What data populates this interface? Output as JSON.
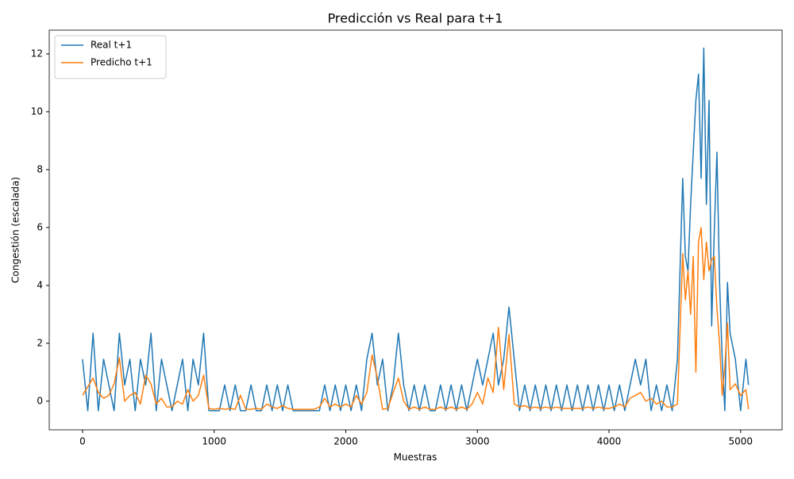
{
  "chart_data": {
    "type": "line",
    "title": "Predicción vs Real para t+1",
    "xlabel": "Muestras",
    "ylabel": "Congestión (escalada)",
    "x": [
      0,
      40,
      80,
      120,
      160,
      200,
      240,
      280,
      320,
      360,
      400,
      440,
      480,
      520,
      560,
      600,
      640,
      680,
      720,
      760,
      800,
      840,
      880,
      920,
      960,
      1000,
      1040,
      1080,
      1120,
      1160,
      1200,
      1240,
      1280,
      1320,
      1360,
      1400,
      1440,
      1480,
      1520,
      1560,
      1600,
      1640,
      1680,
      1720,
      1760,
      1800,
      1840,
      1880,
      1920,
      1960,
      2000,
      2040,
      2080,
      2120,
      2160,
      2200,
      2240,
      2280,
      2320,
      2360,
      2400,
      2440,
      2480,
      2520,
      2560,
      2600,
      2640,
      2680,
      2720,
      2760,
      2800,
      2840,
      2880,
      2920,
      2960,
      3000,
      3040,
      3080,
      3120,
      3160,
      3200,
      3240,
      3280,
      3320,
      3360,
      3400,
      3440,
      3480,
      3520,
      3560,
      3600,
      3640,
      3680,
      3720,
      3760,
      3800,
      3840,
      3880,
      3920,
      3960,
      4000,
      4040,
      4080,
      4120,
      4160,
      4200,
      4240,
      4280,
      4320,
      4360,
      4400,
      4440,
      4480,
      4520,
      4560,
      4580,
      4600,
      4620,
      4640,
      4660,
      4680,
      4700,
      4720,
      4740,
      4760,
      4780,
      4800,
      4820,
      4840,
      4860,
      4880,
      4900,
      4920,
      4960,
      5000,
      5040,
      5060
    ],
    "series": [
      {
        "name": "Real t+1",
        "color": "#1f77b4",
        "values": [
          1.45,
          -0.33,
          2.35,
          -0.33,
          1.45,
          0.56,
          -0.33,
          2.35,
          0.56,
          1.45,
          -0.33,
          1.45,
          0.56,
          2.35,
          -0.33,
          1.45,
          0.56,
          -0.33,
          0.56,
          1.45,
          -0.33,
          1.45,
          0.56,
          2.35,
          -0.33,
          -0.33,
          -0.33,
          0.56,
          -0.33,
          0.56,
          -0.33,
          -0.33,
          0.56,
          -0.33,
          -0.33,
          0.56,
          -0.33,
          0.56,
          -0.33,
          0.56,
          -0.33,
          -0.33,
          -0.33,
          -0.33,
          -0.33,
          -0.33,
          0.56,
          -0.33,
          0.56,
          -0.33,
          0.56,
          -0.33,
          0.56,
          -0.33,
          1.45,
          2.35,
          0.56,
          1.45,
          -0.33,
          0.56,
          2.35,
          0.56,
          -0.33,
          0.56,
          -0.33,
          0.56,
          -0.33,
          -0.33,
          0.56,
          -0.33,
          0.56,
          -0.33,
          0.56,
          -0.33,
          0.56,
          1.45,
          0.56,
          1.45,
          2.35,
          0.56,
          1.45,
          3.25,
          1.45,
          -0.33,
          0.56,
          -0.33,
          0.56,
          -0.33,
          0.56,
          -0.33,
          0.56,
          -0.33,
          0.56,
          -0.33,
          0.56,
          -0.33,
          0.56,
          -0.33,
          0.56,
          -0.33,
          0.56,
          -0.33,
          0.56,
          -0.33,
          0.56,
          1.45,
          0.56,
          1.45,
          -0.33,
          0.56,
          -0.33,
          0.56,
          -0.33,
          1.45,
          7.7,
          5.0,
          4.5,
          6.8,
          8.6,
          10.4,
          11.3,
          7.7,
          12.2,
          6.8,
          10.4,
          2.6,
          5.9,
          8.6,
          4.1,
          1.45,
          -0.33,
          4.1,
          2.35,
          1.45,
          -0.33,
          1.45,
          0.56
        ]
      },
      {
        "name": "Predicho t+1",
        "color": "#ff7f0e",
        "values": [
          0.2,
          0.5,
          0.8,
          0.3,
          0.1,
          0.2,
          0.6,
          1.5,
          0.0,
          0.2,
          0.3,
          -0.1,
          0.9,
          0.6,
          -0.1,
          0.1,
          -0.2,
          -0.2,
          0.0,
          -0.1,
          0.4,
          0.0,
          0.2,
          0.9,
          -0.25,
          -0.28,
          -0.25,
          -0.28,
          -0.25,
          -0.28,
          0.2,
          -0.28,
          -0.28,
          -0.25,
          -0.28,
          -0.1,
          -0.2,
          -0.25,
          -0.15,
          -0.25,
          -0.28,
          -0.28,
          -0.28,
          -0.28,
          -0.28,
          -0.2,
          0.1,
          -0.2,
          -0.1,
          -0.2,
          -0.1,
          -0.2,
          0.2,
          -0.1,
          0.3,
          1.6,
          0.8,
          -0.28,
          -0.25,
          0.3,
          0.8,
          0.0,
          -0.28,
          -0.2,
          -0.28,
          -0.2,
          -0.28,
          -0.28,
          -0.2,
          -0.28,
          -0.2,
          -0.28,
          -0.2,
          -0.28,
          -0.1,
          0.3,
          -0.1,
          0.8,
          0.3,
          2.55,
          0.4,
          2.3,
          -0.1,
          -0.2,
          -0.15,
          -0.25,
          -0.2,
          -0.25,
          -0.2,
          -0.25,
          -0.2,
          -0.25,
          -0.25,
          -0.25,
          -0.25,
          -0.25,
          -0.2,
          -0.25,
          -0.2,
          -0.25,
          -0.25,
          -0.2,
          -0.1,
          -0.2,
          0.1,
          0.2,
          0.3,
          0.0,
          0.1,
          -0.1,
          0.0,
          -0.2,
          -0.2,
          -0.1,
          5.1,
          3.5,
          4.5,
          3.0,
          5.0,
          1.0,
          5.5,
          6.0,
          4.2,
          5.5,
          4.5,
          4.9,
          5.0,
          3.2,
          2.0,
          0.2,
          1.2,
          2.7,
          0.4,
          0.6,
          0.2,
          0.4,
          -0.28
        ]
      }
    ],
    "xlim": [
      -253,
      5315
    ],
    "ylim": [
      -0.99,
      12.82
    ],
    "xticks": [
      0,
      1000,
      2000,
      3000,
      4000,
      5000
    ],
    "yticks": [
      0,
      2,
      4,
      6,
      8,
      10,
      12
    ],
    "legend": "upper left"
  }
}
